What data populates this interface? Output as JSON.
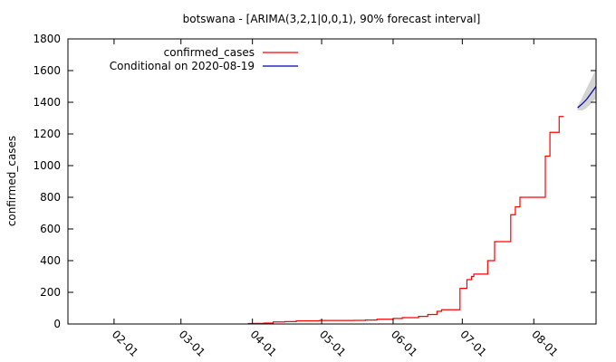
{
  "chart_data": {
    "type": "line",
    "title": "botswana -  [ARIMA(3,2,1|0,0,1), 90% forecast interval]",
    "xlabel": "",
    "ylabel": "confirmed_cases",
    "xlim": [
      "2020-01-12",
      "2020-08-28"
    ],
    "ylim": [
      0,
      1800
    ],
    "yticks": [
      0,
      200,
      400,
      600,
      800,
      1000,
      1200,
      1400,
      1600,
      1800
    ],
    "xticks": [
      {
        "date": "2020-02-01",
        "label": "02-01"
      },
      {
        "date": "2020-03-01",
        "label": "03-01"
      },
      {
        "date": "2020-04-01",
        "label": "04-01"
      },
      {
        "date": "2020-05-01",
        "label": "05-01"
      },
      {
        "date": "2020-06-01",
        "label": "06-01"
      },
      {
        "date": "2020-07-01",
        "label": "07-01"
      },
      {
        "date": "2020-08-01",
        "label": "08-01"
      }
    ],
    "grid": false,
    "legend_position": "top-left",
    "series": [
      {
        "name": "confirmed_cases",
        "color": "#ff0000",
        "style": "step",
        "points": [
          [
            "2020-03-30",
            3
          ],
          [
            "2020-04-02",
            4
          ],
          [
            "2020-04-06",
            6
          ],
          [
            "2020-04-10",
            13
          ],
          [
            "2020-04-15",
            15
          ],
          [
            "2020-04-20",
            20
          ],
          [
            "2020-04-30",
            22
          ],
          [
            "2020-05-15",
            23
          ],
          [
            "2020-05-20",
            25
          ],
          [
            "2020-05-25",
            30
          ],
          [
            "2020-06-01",
            35
          ],
          [
            "2020-06-05",
            40
          ],
          [
            "2020-06-12",
            48
          ],
          [
            "2020-06-16",
            60
          ],
          [
            "2020-06-20",
            80
          ],
          [
            "2020-06-22",
            90
          ],
          [
            "2020-06-30",
            225
          ],
          [
            "2020-07-03",
            280
          ],
          [
            "2020-07-05",
            300
          ],
          [
            "2020-07-06",
            315
          ],
          [
            "2020-07-12",
            400
          ],
          [
            "2020-07-15",
            520
          ],
          [
            "2020-07-22",
            690
          ],
          [
            "2020-07-24",
            740
          ],
          [
            "2020-07-26",
            800
          ],
          [
            "2020-08-06",
            1060
          ],
          [
            "2020-08-08",
            1210
          ],
          [
            "2020-08-12",
            1310
          ],
          [
            "2020-08-14",
            1310
          ]
        ]
      },
      {
        "name": "Conditional on 2020-08-19",
        "color": "#0000aa",
        "style": "line",
        "points": [
          [
            "2020-08-20",
            1365
          ],
          [
            "2020-08-22",
            1390
          ],
          [
            "2020-08-24",
            1420
          ],
          [
            "2020-08-26",
            1460
          ],
          [
            "2020-08-28",
            1500
          ]
        ],
        "interval_90": {
          "color": "#d3d3d3",
          "lower": [
            1350,
            1348,
            1365,
            1395,
            1425
          ],
          "upper": [
            1375,
            1430,
            1490,
            1550,
            1610
          ]
        }
      }
    ]
  }
}
